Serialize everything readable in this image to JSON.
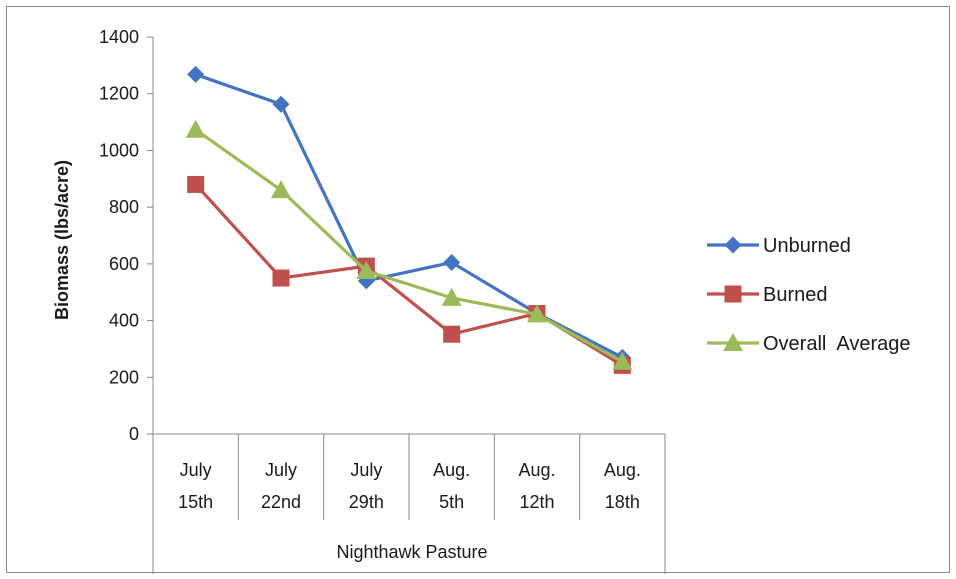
{
  "chart_data": {
    "type": "line",
    "title": "",
    "xlabel": "Nighthawk Pasture",
    "ylabel": "Biomass (lbs/acre)",
    "ylim": [
      0,
      1400
    ],
    "yticks": [
      0,
      200,
      400,
      600,
      800,
      1000,
      1200,
      1400
    ],
    "grid": false,
    "legend_position": "right",
    "categories": [
      [
        "July",
        "15th"
      ],
      [
        "July",
        "22nd"
      ],
      [
        "July",
        "29th"
      ],
      [
        "Aug.",
        "5th"
      ],
      [
        "Aug.",
        "12th"
      ],
      [
        "Aug.",
        "18th"
      ]
    ],
    "series": [
      {
        "name": "Unburned",
        "color": "#4472C4",
        "marker": "diamond",
        "values": [
          1268,
          1163,
          540,
          605,
          425,
          270
        ]
      },
      {
        "name": "Burned",
        "color": "#C0504D",
        "marker": "square",
        "values": [
          880,
          550,
          592,
          352,
          425,
          242
        ]
      },
      {
        "name": "Overall  Average",
        "color": "#9BBB59",
        "marker": "triangle",
        "values": [
          1073,
          860,
          575,
          480,
          422,
          255
        ]
      }
    ]
  }
}
